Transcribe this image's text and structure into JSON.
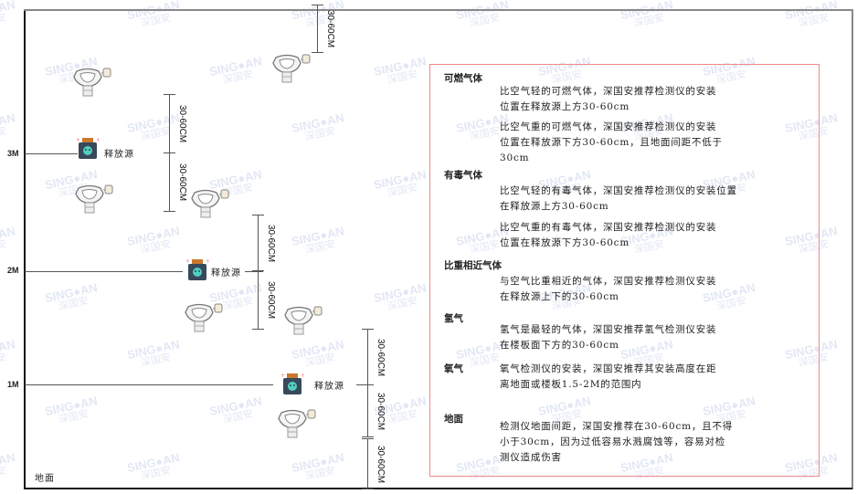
{
  "watermark": {
    "brand": "SING●AN",
    "cn": "深国安"
  },
  "levels": {
    "m3": "3M",
    "m2": "2M",
    "m1": "1M",
    "ground": "地面"
  },
  "source_label": "释放源",
  "dimension_label": "30-60CM",
  "panel": {
    "border_color": "#e88888",
    "sections": [
      {
        "heading": "可燃气体",
        "paras": [
          "比空气轻的可燃气体，深国安推荐检测仪的安装\n位置在释放源上方30-60cm",
          "比空气重的可燃气体，深国安推荐检测仪的安装\n位置在释放源下方30-60cm，且地面间距不低于\n30cm"
        ]
      },
      {
        "heading": "有毒气体",
        "paras": [
          "比空气轻的有毒气体，深国安推荐检测仪的安装位置\n在释放源上方30-60cm",
          "比空气重的有毒气体，深国安推荐检测仪的安装\n位置在释放源下方30-60cm"
        ]
      },
      {
        "heading": "比重相近气体",
        "paras": [
          "与空气比重相近的气体，深国安推荐检测仪安装\n在释放源上下的30-60cm"
        ]
      },
      {
        "heading": "氢气",
        "paras": [
          "氢气是最轻的气体，深国安推荐氢气检测仪安装\n在楼板面下方的30-60cm"
        ]
      },
      {
        "heading": "氧气",
        "paras": [
          "氧气检测仪的安装，深国安推荐其安装高度在距\n离地面或楼板1.5-2M的范围内"
        ]
      },
      {
        "heading": "地面",
        "paras": [
          "检测仪地面间距，深国安推荐在30-60cm，且不得\n小于30cm，因为过低容易水溅腐蚀等，容易对检\n测仪造成伤害"
        ]
      }
    ]
  }
}
